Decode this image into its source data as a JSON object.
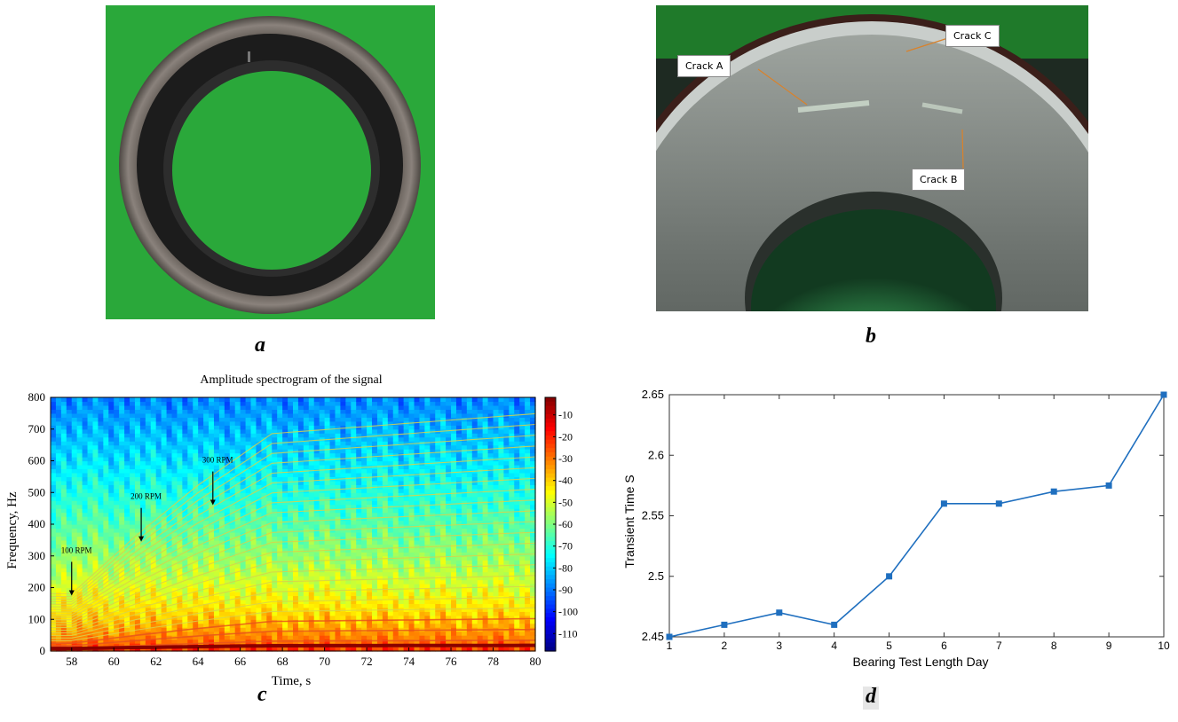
{
  "panels": {
    "a": {
      "label": "a"
    },
    "b": {
      "label": "b",
      "callouts": [
        "Crack A",
        "Crack B",
        "Crack C"
      ]
    },
    "c": {
      "label": "c"
    },
    "d": {
      "label": "d"
    }
  },
  "colors": {
    "green_background": "#2aa83a",
    "line": "#1f6fbf",
    "marker": "#1f6fbf",
    "callout_arrow": "#d9822b"
  },
  "chart_data": [
    {
      "type": "heatmap",
      "title": "Amplitude spectrogram of the signal",
      "xlabel": "Time, s",
      "ylabel": "Frequency, Hz",
      "xlim": [
        57,
        80
      ],
      "ylim": [
        0,
        800
      ],
      "xticks": [
        "58",
        "60",
        "62",
        "64",
        "66",
        "68",
        "70",
        "72",
        "74",
        "76",
        "78",
        "80"
      ],
      "yticks": [
        "0",
        "100",
        "200",
        "300",
        "400",
        "500",
        "600",
        "700",
        "800"
      ],
      "colorbar": {
        "range": [
          -118,
          -2
        ],
        "ticks": [
          "-10",
          "-20",
          "-30",
          "-40",
          "-50",
          "-60",
          "-70",
          "-80",
          "-90",
          "-100",
          "-110"
        ]
      },
      "annotations": [
        {
          "text": "100 RPM",
          "x": 58.0,
          "y": 175
        },
        {
          "text": "200 RPM",
          "x": 61.3,
          "y": 345
        },
        {
          "text": "300 RPM",
          "x": 64.7,
          "y": 460
        }
      ]
    },
    {
      "type": "line",
      "title": "",
      "xlabel": "Bearing Test Length Day",
      "ylabel": "Transient Time S",
      "x": [
        1,
        2,
        3,
        4,
        5,
        6,
        7,
        8,
        9,
        10
      ],
      "series": [
        {
          "values": [
            2.45,
            2.46,
            2.47,
            2.46,
            2.5,
            2.56,
            2.56,
            2.57,
            2.575,
            2.65
          ]
        }
      ],
      "xlim": [
        1,
        10
      ],
      "ylim": [
        2.45,
        2.65
      ],
      "xticks": [
        "1",
        "2",
        "3",
        "4",
        "5",
        "6",
        "7",
        "8",
        "9",
        "10"
      ],
      "yticks": [
        "2.45",
        "2.5",
        "2.55",
        "2.6",
        "2.65"
      ],
      "grid": false
    }
  ]
}
